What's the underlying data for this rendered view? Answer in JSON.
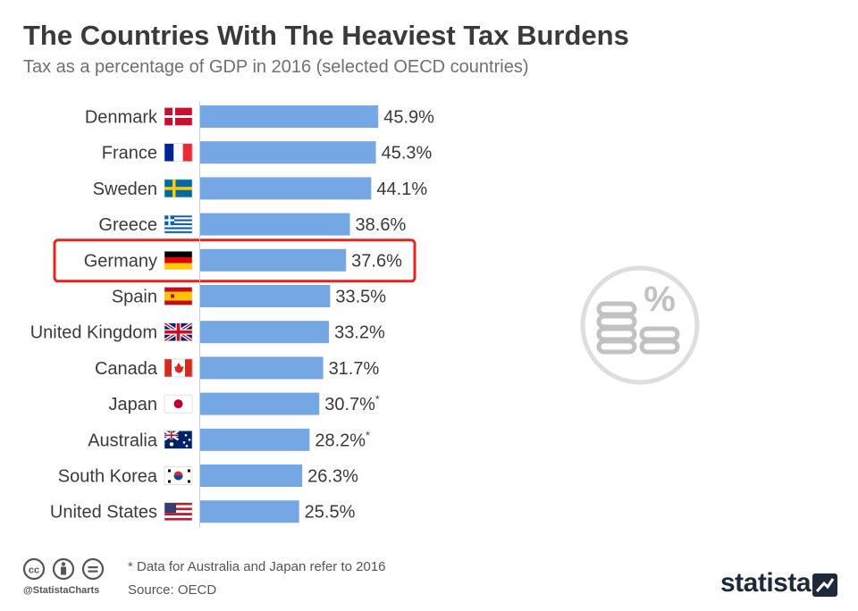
{
  "header": {
    "title": "The Countries With The Heaviest Tax Burdens",
    "subtitle": "Tax as a percentage of GDP in 2016 (selected OECD countries)"
  },
  "footer": {
    "footnote": "* Data for Australia and Japan refer to 2016",
    "source": "Source: OECD",
    "handle": "@StatistaCharts",
    "brand": "statista"
  },
  "colors": {
    "bar": "#74a7e4",
    "highlight": "#e8231d",
    "text": "#3a3a3a",
    "icon": "#c7c7c7"
  },
  "chart_data": {
    "type": "bar",
    "orientation": "horizontal",
    "title": "The Countries With The Heaviest Tax Burdens",
    "subtitle": "Tax as a percentage of GDP in 2016 (selected OECD countries)",
    "xlabel": "",
    "ylabel": "",
    "unit": "%",
    "xlim": [
      0,
      50
    ],
    "grid": false,
    "highlighted": "Germany",
    "categories": [
      "Denmark",
      "France",
      "Sweden",
      "Greece",
      "Germany",
      "Spain",
      "United Kingdom",
      "Canada",
      "Japan",
      "Australia",
      "South Korea",
      "United States"
    ],
    "values": [
      45.9,
      45.3,
      44.1,
      38.6,
      37.6,
      33.5,
      33.2,
      31.7,
      30.7,
      28.2,
      26.3,
      25.5
    ],
    "labels": [
      "45.9%",
      "45.3%",
      "44.1%",
      "38.6%",
      "37.6%",
      "33.5%",
      "33.2%",
      "31.7%",
      "30.7%",
      "28.2%",
      "26.3%",
      "25.5%"
    ],
    "label_notes": [
      "",
      "",
      "",
      "",
      "",
      "",
      "",
      "",
      "*",
      "*",
      "",
      ""
    ],
    "flags": [
      "dk",
      "fr",
      "se",
      "gr",
      "de",
      "es",
      "gb",
      "ca",
      "jp",
      "au",
      "kr",
      "us"
    ]
  }
}
